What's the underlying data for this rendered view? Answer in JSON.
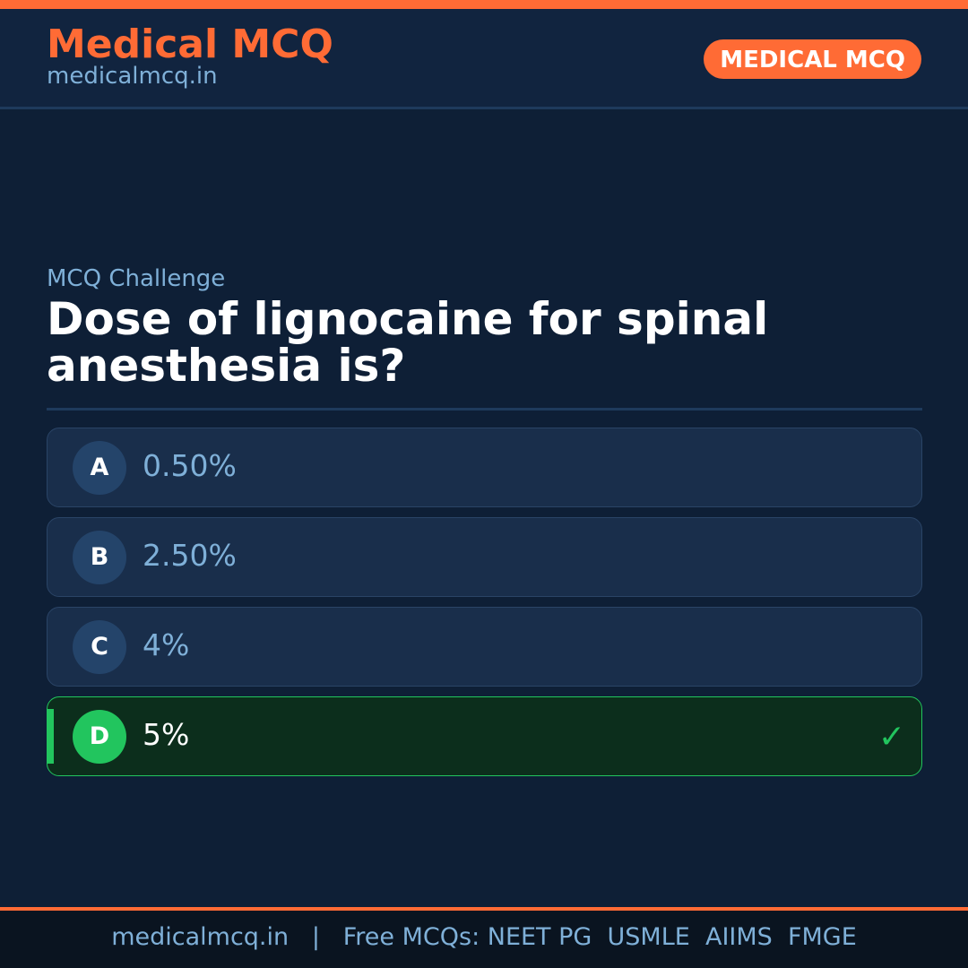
{
  "header": {
    "brand": "Medical MCQ",
    "site": "medicalmcq.in",
    "badge": "MEDICAL MCQ"
  },
  "kicker": "MCQ Challenge",
  "question": "Dose of lignocaine for spinal anesthesia is?",
  "options": [
    {
      "letter": "A",
      "text": "0.50%"
    },
    {
      "letter": "B",
      "text": "2.50%"
    },
    {
      "letter": "C",
      "text": "4%"
    },
    {
      "letter": "D",
      "text": "5%",
      "correct": true
    }
  ],
  "footer": "medicalmcq.in   |   Free MCQs: NEET PG  USMLE  AIIMS  FMGE",
  "colors": {
    "accent": "#ff6b35",
    "correct": "#22c55e",
    "background": "#0e1f36"
  },
  "icons": {
    "correct": "check-icon"
  }
}
